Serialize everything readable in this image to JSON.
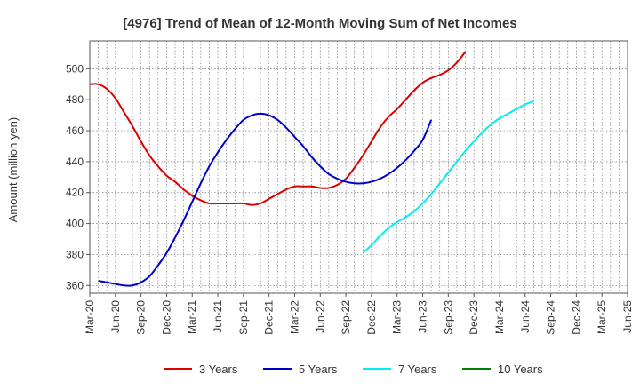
{
  "chart_data": {
    "type": "line",
    "title": "[4976]  Trend of Mean of 12-Month Moving Sum of Net Incomes",
    "ylabel": "Amount (million yen)",
    "xlabel": "",
    "x_tick_labels": [
      "Mar-20",
      "Jun-20",
      "Sep-20",
      "Dec-20",
      "Mar-21",
      "Jun-21",
      "Sep-21",
      "Dec-21",
      "Mar-22",
      "Jun-22",
      "Sep-22",
      "Dec-22",
      "Mar-23",
      "Jun-23",
      "Sep-23",
      "Dec-23",
      "Mar-24",
      "Jun-24",
      "Sep-24",
      "Dec-24",
      "Mar-25",
      "Jun-25"
    ],
    "y_ticks": [
      360,
      380,
      400,
      420,
      440,
      460,
      480,
      500
    ],
    "ylim": [
      355,
      518
    ],
    "grid": true,
    "legend_position": "bottom",
    "series": [
      {
        "name": "3 Years",
        "color": "#dd0000",
        "values": [
          490,
          490,
          487,
          481,
          472,
          463,
          453,
          444,
          437,
          431,
          427,
          422,
          418,
          415,
          413,
          413,
          413,
          413,
          413,
          412,
          413,
          416,
          419,
          422,
          424,
          424,
          424,
          423,
          423,
          425,
          429,
          436,
          444,
          453,
          462,
          469,
          474,
          480,
          486,
          491,
          494,
          496,
          499,
          504,
          511
        ]
      },
      {
        "name": "5 Years",
        "color": "#0000cc",
        "values": [
          null,
          363,
          362,
          361,
          360,
          360,
          362,
          366,
          373,
          381,
          391,
          402,
          414,
          426,
          437,
          446,
          454,
          461,
          467,
          470,
          471,
          470,
          467,
          462,
          456,
          450,
          443,
          437,
          432,
          429,
          427,
          426,
          426,
          427,
          429,
          432,
          436,
          441,
          447,
          454,
          467
        ]
      },
      {
        "name": "7 Years",
        "color": "#00eeee",
        "values": [
          null,
          null,
          null,
          null,
          null,
          null,
          null,
          null,
          null,
          null,
          null,
          null,
          null,
          null,
          null,
          null,
          null,
          null,
          null,
          null,
          null,
          null,
          null,
          null,
          null,
          null,
          null,
          null,
          null,
          null,
          null,
          null,
          381,
          386,
          392,
          397,
          401,
          404,
          408,
          413,
          419,
          426,
          433,
          440,
          447,
          453,
          459,
          464,
          468,
          471,
          474,
          477,
          479
        ]
      },
      {
        "name": "10 Years",
        "color": "#008000",
        "values": []
      }
    ]
  }
}
